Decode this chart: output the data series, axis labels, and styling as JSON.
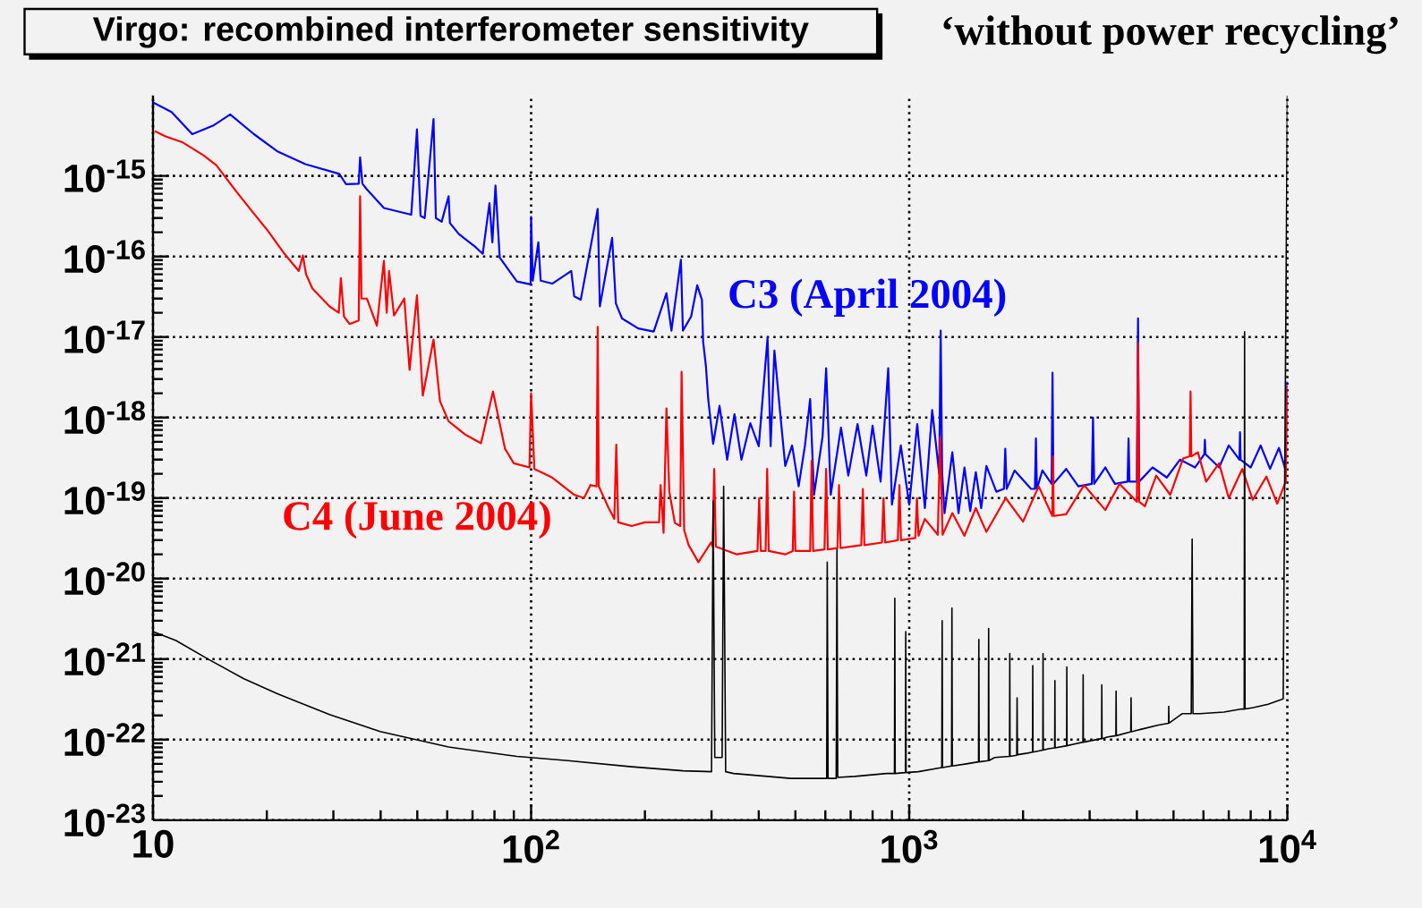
{
  "chart_data": {
    "type": "line",
    "title": "Virgo: recombined interferometer sensitivity",
    "annotations": [
      "‘without power recycling’"
    ],
    "log": "xy",
    "grid": true,
    "xlim": [
      10,
      10000
    ],
    "ylim": [
      1e-23,
      1e-14
    ],
    "xticks": [
      10,
      {
        "value": 100,
        "label": "10$^{2}$"
      },
      {
        "value": 1000,
        "label": "10$^{3}$"
      },
      {
        "value": 10000,
        "label": "10$^{4}$"
      }
    ],
    "yticks": [
      {
        "value": 1e-23,
        "label": "10$^{-23}$"
      },
      {
        "value": 1e-22,
        "label": "10$^{-22}$"
      },
      {
        "value": 1e-21,
        "label": "10$^{-21}$"
      },
      {
        "value": 1e-20,
        "label": "10$^{-20}$"
      },
      {
        "value": 1e-19,
        "label": "10$^{-19}$"
      },
      {
        "value": 1e-18,
        "label": "10$^{-18}$"
      },
      {
        "value": 1e-17,
        "label": "10$^{-17}$"
      },
      {
        "value": 1e-16,
        "label": "10$^{-16}$"
      },
      {
        "value": 1e-15,
        "label": "10$^{-15}$"
      }
    ],
    "series": [
      {
        "name": "C3 (April 2004)",
        "color": "#0000ff",
        "x": [
          10,
          11.2,
          12.7,
          14.4,
          16,
          18.5,
          21.4,
          25.3,
          31.1,
          32.4,
          35,
          35.3,
          35.8,
          36.8,
          40.8,
          48.2,
          49.9,
          51,
          52.3,
          55.2,
          56,
          58,
          60.5,
          61,
          64.4,
          71.4,
          74.5,
          77.6,
          79,
          80.5,
          82.6,
          91.7,
          99.7,
          100,
          101,
          104.5,
          106,
          113.7,
          127.7,
          130,
          135.3,
          150,
          152,
          163.8,
          167.6,
          174,
          192,
          211,
          228,
          235,
          249,
          252,
          265,
          275,
          283,
          285,
          290,
          294,
          303,
          315,
          330,
          345,
          360,
          380,
          400,
          422,
          430,
          440,
          455,
          470,
          490,
          510,
          530,
          547,
          560,
          590,
          603,
          620,
          660,
          690,
          730,
          770,
          800,
          840,
          880,
          900,
          950,
          1000,
          1050,
          1100,
          1150,
          1200,
          1211,
          1222,
          1240,
          1300,
          1350,
          1400,
          1450,
          1500,
          1550,
          1600,
          1700,
          1780,
          1795,
          1810,
          1900,
          2100,
          2150,
          2163,
          2176,
          2250,
          2380,
          2393,
          2406,
          2600,
          2800,
          3040,
          3062,
          3084,
          3300,
          3500,
          3780,
          3802,
          3824,
          4000,
          4028,
          4056,
          4400,
          4800,
          5200,
          5700,
          6030,
          6053,
          6076,
          6600,
          7000,
          7470,
          7497,
          7524,
          8000,
          8500,
          9000,
          9500,
          9900,
          10000
        ],
        "values": [
          8.2e-15,
          6.2e-15,
          3.3e-15,
          4.2e-15,
          5.8e-15,
          3.3e-15,
          2e-15,
          1.4e-15,
          1.06e-15,
          7.9e-16,
          8e-16,
          1.7e-15,
          8e-16,
          6.8e-16,
          4e-16,
          3.3e-16,
          3.8e-15,
          3.2e-16,
          3e-16,
          5.1e-15,
          3e-16,
          2.7e-16,
          5.6e-16,
          2.6e-16,
          1.9e-16,
          1.3e-16,
          1.08e-16,
          4.6e-16,
          1.5e-16,
          7.6e-16,
          9.7e-17,
          4.9e-17,
          4.5e-17,
          3.1e-16,
          5e-17,
          1.5e-16,
          5e-17,
          4.6e-17,
          6.6e-17,
          3.2e-17,
          2.9e-17,
          3.9e-16,
          2.4e-17,
          1.7e-16,
          2.6e-17,
          1.7e-17,
          1.28e-17,
          1.17e-17,
          3.5e-17,
          1.2e-17,
          9.1e-17,
          1.2e-17,
          1.8e-17,
          4.4e-17,
          2.9e-17,
          8.9e-18,
          4.3e-18,
          1.7e-18,
          4.7e-19,
          1.4e-18,
          3e-19,
          1.1e-18,
          3e-19,
          8.5e-19,
          4.4e-19,
          9.8e-18,
          4.4e-19,
          6.8e-18,
          1.24e-18,
          2.5e-19,
          4.5e-19,
          1.4e-19,
          4.5e-19,
          1.7e-18,
          1.1e-19,
          5.8e-19,
          4.1e-18,
          1.1e-19,
          7.5e-19,
          1.9e-19,
          8.3e-19,
          1.9e-19,
          7.9e-19,
          1.6e-19,
          4.1e-18,
          8.3e-20,
          4.5e-19,
          8.3e-20,
          8.3e-19,
          7.5e-20,
          1.24e-18,
          2e-19,
          1.2e-17,
          2e-19,
          6.5e-20,
          3.7e-19,
          6.5e-20,
          2.4e-19,
          6.9e-20,
          2.1e-19,
          7.5e-20,
          2.5e-19,
          1.2e-19,
          1.3e-19,
          4.1e-19,
          1.3e-19,
          2.2e-19,
          1.3e-19,
          1.3e-19,
          5.5e-19,
          1.3e-19,
          2.2e-19,
          1.5e-19,
          3.6e-18,
          1.5e-19,
          2.3e-19,
          1.4e-19,
          1.5e-19,
          1e-18,
          1.5e-19,
          2.4e-19,
          1.5e-19,
          1.6e-19,
          5.5e-19,
          1.6e-19,
          1.6e-19,
          1.7e-17,
          1.6e-19,
          2.4e-19,
          1.8e-19,
          3e-19,
          2.4e-19,
          3.5e-19,
          5.3e-19,
          3.5e-19,
          2.4e-19,
          4.5e-19,
          3e-19,
          6.6e-19,
          3e-19,
          2.4e-19,
          4.5e-19,
          2.3e-19,
          4.2e-19,
          2.2e-19,
          2.8e-18
        ]
      },
      {
        "name": "C4 (June 2004)",
        "color": "#ff0000",
        "x": [
          10.1,
          10.8,
          12,
          13.6,
          14.7,
          16.7,
          18.5,
          20.1,
          22.3,
          24.3,
          24.9,
          25.4,
          26.4,
          29.3,
          31,
          31.4,
          32,
          33.1,
          35,
          35.3,
          35.6,
          36.8,
          39.1,
          40.8,
          41.5,
          42.1,
          43.4,
          46.2,
          47.7,
          49.9,
          51.7,
          55.2,
          57.4,
          60.5,
          67.1,
          73.7,
          79.3,
          85.3,
          90,
          99,
          100,
          102,
          113.7,
          130,
          138,
          143.5,
          149,
          150,
          151,
          160,
          166,
          168,
          170,
          184.5,
          200,
          218,
          220,
          224,
          228,
          232,
          240,
          248,
          250,
          254,
          261,
          277,
          299,
          302,
          305,
          308,
          350,
          397,
          401,
          405,
          417,
          421,
          425,
          470,
          492,
          496,
          500,
          547,
          552,
          557,
          597,
          603,
          609,
          646,
          652,
          658,
          747,
          754,
          761,
          847,
          855,
          863,
          933,
          942,
          951,
          1038,
          1048,
          1058,
          1100,
          1190,
          1207,
          1225,
          1300,
          1400,
          1500,
          1600,
          1800,
          2000,
          2200,
          2390,
          2400,
          2410,
          2600,
          2900,
          3300,
          3600,
          4000,
          4028,
          4056,
          4200,
          4500,
          4900,
          5300,
          5520,
          5546,
          5572,
          5800,
          6100,
          6600,
          7000,
          7600,
          8100,
          8800,
          9400,
          9900,
          10000
        ],
        "values": [
          3.6e-15,
          3.1e-15,
          2.6e-15,
          1.8e-15,
          1.36e-15,
          6.2e-16,
          3.4e-16,
          2.1e-16,
          1.07e-16,
          6.6e-17,
          1.03e-16,
          6e-17,
          4e-17,
          2.4e-17,
          2e-17,
          5.4e-17,
          1.8e-17,
          1.45e-17,
          1.6e-17,
          5.6e-16,
          3e-17,
          3e-17,
          1.38e-17,
          8.8e-17,
          2e-17,
          6.6e-17,
          1.85e-17,
          3e-17,
          3.9e-18,
          3.3e-17,
          1.87e-18,
          9.3e-18,
          1.6e-18,
          9e-19,
          6.1e-19,
          4.8e-19,
          2.1e-18,
          4.1e-19,
          2.7e-19,
          2.4e-19,
          2e-18,
          2.3e-19,
          1.8e-19,
          1.1e-19,
          1e-19,
          1.45e-19,
          1.4e-19,
          1.34e-17,
          1.4e-19,
          7.7e-20,
          5.5e-20,
          4.6e-19,
          5e-20,
          4.5e-20,
          5e-20,
          5e-20,
          1.45e-19,
          3.7e-20,
          1.3e-18,
          1.2e-19,
          4.9e-20,
          4.5e-20,
          3.7e-18,
          4e-20,
          2.6e-20,
          1.6e-20,
          2.8e-20,
          2.5e-20,
          2.3e-19,
          2.5e-20,
          2e-20,
          2.2e-20,
          1e-19,
          2.2e-20,
          2.2e-20,
          2.3e-19,
          2.2e-20,
          2e-20,
          2.2e-20,
          1.2e-19,
          2.2e-20,
          2.2e-20,
          2.9e-19,
          2.2e-20,
          2.3e-20,
          2.3e-19,
          2.3e-20,
          2.4e-20,
          1.45e-19,
          2.4e-20,
          2.6e-20,
          1.3e-19,
          2.6e-20,
          2.8e-20,
          1e-19,
          2.8e-20,
          3e-20,
          1.45e-19,
          3e-20,
          3.2e-20,
          1e-19,
          3.4e-20,
          5.5e-20,
          3.5e-20,
          5.7e-19,
          3.5e-20,
          6.5e-20,
          3.4e-20,
          7.5e-20,
          3.8e-20,
          1e-19,
          5.1e-20,
          1.4e-19,
          6e-20,
          3.3e-19,
          6e-20,
          6.3e-20,
          1.45e-19,
          7.1e-20,
          1.5e-19,
          9e-20,
          8.4e-18,
          9e-20,
          7.9e-20,
          1.9e-19,
          1.1e-19,
          3.1e-19,
          3.3e-19,
          2.1e-18,
          3.3e-19,
          3.7e-19,
          1.6e-19,
          2.7e-19,
          1e-19,
          2.3e-19,
          9.5e-20,
          1.85e-19,
          8.5e-20,
          1.6e-19,
          2.5e-18
        ]
      },
      {
        "color": "#000000",
        "x": [
          10,
          11.5,
          14.1,
          17.4,
          21.4,
          29.3,
          39.9,
          60.5,
          91.6,
          125,
          184.5,
          252,
          300,
          303,
          306,
          320,
          323,
          327,
          343,
          486,
          590,
          605,
          607,
          610,
          641,
          644,
          647,
          718,
          871,
          914,
          916,
          918,
          977,
          979,
          981,
          1057,
          1219,
          1222,
          1225,
          1294,
          1297,
          1300,
          1417,
          1525,
          1528,
          1531,
          1619,
          1622,
          1625,
          1683,
          1842,
          1845,
          1848,
          1925,
          1929,
          1933,
          2054,
          2119,
          2122,
          2125,
          2256,
          2259,
          2262,
          2334,
          2425,
          2428,
          2431,
          2608,
          2611,
          2614,
          2697,
          2880,
          2884,
          2888,
          3227,
          3231,
          3235,
          3352,
          3520,
          3525,
          3530,
          3855,
          3861,
          3867,
          4090,
          4561,
          4850,
          4857,
          4864,
          5268,
          5570,
          5600,
          5630,
          5875,
          6794,
          7568,
          7690,
          7709,
          7730,
          8128,
          8892,
          9750,
          10000
        ],
        "values": [
          2.2e-21,
          1.7e-21,
          9.8e-22,
          5.7e-22,
          3.7e-22,
          2.05e-22,
          1.26e-22,
          8.1e-23,
          6.2e-23,
          5.5e-23,
          4.6e-23,
          4.1e-23,
          4e-23,
          9.2e-20,
          6e-23,
          6e-23,
          1.4e-19,
          4e-23,
          3.8e-23,
          3.3e-23,
          3.3e-23,
          3.3e-23,
          1.6e-20,
          3.3e-23,
          3.3e-23,
          2.3e-20,
          3.4e-23,
          3.5e-23,
          3.8e-23,
          3.8e-23,
          5.7e-21,
          3.8e-23,
          3.9e-23,
          2.2e-21,
          3.9e-23,
          4e-23,
          4.5e-23,
          3e-21,
          4.5e-23,
          4.7e-23,
          4.3e-21,
          4.7e-23,
          5e-23,
          5.3e-23,
          1.75e-21,
          5.3e-23,
          5.5e-23,
          2.4e-21,
          5.5e-23,
          6e-23,
          6.2e-23,
          1.17e-21,
          6.2e-23,
          6.4e-23,
          3.3e-22,
          6.5e-23,
          6.8e-23,
          7e-23,
          8.3e-22,
          7e-23,
          7.4e-23,
          1.17e-21,
          7.4e-23,
          7.7e-23,
          7.9e-23,
          5.4e-22,
          7.9e-23,
          8.4e-23,
          8e-22,
          8.4e-23,
          8.7e-23,
          9.3e-23,
          6.4e-22,
          9.3e-23,
          1.03e-22,
          4.8e-22,
          1.03e-22,
          1.08e-22,
          1.12e-22,
          4e-22,
          1.12e-22,
          1.25e-22,
          3.3e-22,
          1.25e-22,
          1.34e-22,
          1.52e-22,
          1.6e-22,
          2.6e-22,
          1.6e-22,
          2.1e-22,
          2.1e-22,
          3.1e-20,
          2.1e-22,
          2.1e-22,
          2.2e-22,
          2.4e-22,
          2.4e-22,
          1.16e-17,
          2.4e-22,
          2.5e-22,
          2.75e-22,
          3.2e-22,
          1e-14
        ]
      }
    ]
  }
}
